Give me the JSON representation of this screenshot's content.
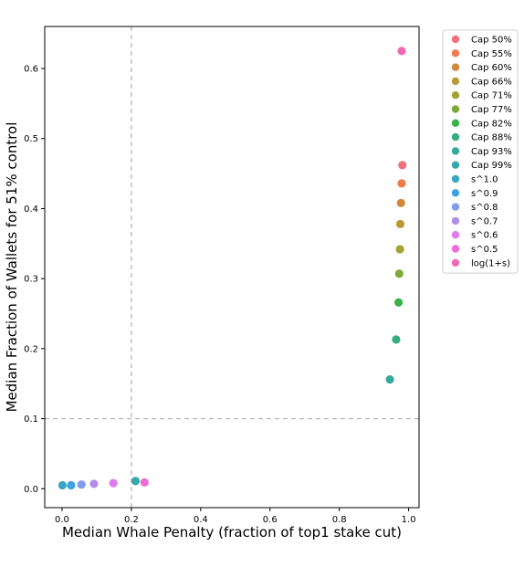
{
  "chart_data": {
    "type": "scatter",
    "title": "",
    "xlabel": "Median Whale Penalty (fraction of top1 stake cut)",
    "ylabel": "Median Fraction of Wallets for 51% control",
    "xlim": [
      -0.05,
      1.03
    ],
    "ylim": [
      -0.027,
      0.66
    ],
    "xticks": [
      0.0,
      0.2,
      0.4,
      0.6,
      0.8,
      1.0
    ],
    "xtick_labels": [
      "0.0",
      "0.2",
      "0.4",
      "0.6",
      "0.8",
      "1.0"
    ],
    "yticks": [
      0.0,
      0.1,
      0.2,
      0.3,
      0.4,
      0.5,
      0.6
    ],
    "ytick_labels": [
      "0.0",
      "0.1",
      "0.2",
      "0.3",
      "0.4",
      "0.5",
      "0.6"
    ],
    "grid": false,
    "reference_lines": [
      {
        "orientation": "vertical",
        "value": 0.2,
        "style": "dashed",
        "color": "#b0b0b0"
      },
      {
        "orientation": "horizontal",
        "value": 0.1,
        "style": "dashed",
        "color": "#b0b0b0"
      }
    ],
    "legend_position": "outside-top-right",
    "series": [
      {
        "name": "Cap 50%",
        "color": "#f0707e",
        "x": [
          0.982
        ],
        "y": [
          0.462
        ]
      },
      {
        "name": "Cap 55%",
        "color": "#f07a4c",
        "x": [
          0.98
        ],
        "y": [
          0.436
        ]
      },
      {
        "name": "Cap 60%",
        "color": "#d2883a",
        "x": [
          0.978
        ],
        "y": [
          0.408
        ]
      },
      {
        "name": "Cap 66%",
        "color": "#b99a35",
        "x": [
          0.976
        ],
        "y": [
          0.378
        ]
      },
      {
        "name": "Cap 71%",
        "color": "#a3a336",
        "x": [
          0.975
        ],
        "y": [
          0.342
        ]
      },
      {
        "name": "Cap 77%",
        "color": "#7daa37",
        "x": [
          0.973
        ],
        "y": [
          0.307
        ]
      },
      {
        "name": "Cap 82%",
        "color": "#3bb147",
        "x": [
          0.971
        ],
        "y": [
          0.266
        ]
      },
      {
        "name": "Cap 88%",
        "color": "#34ad7e",
        "x": [
          0.964
        ],
        "y": [
          0.213
        ]
      },
      {
        "name": "Cap 93%",
        "color": "#35aa9a",
        "x": [
          0.946
        ],
        "y": [
          0.156
        ]
      },
      {
        "name": "Cap 99%",
        "color": "#36a8a9",
        "x": [
          0.212
        ],
        "y": [
          0.011
        ]
      },
      {
        "name": "s^1.0",
        "color": "#38a6c2",
        "x": [
          0.001
        ],
        "y": [
          0.005
        ]
      },
      {
        "name": "s^0.9",
        "color": "#3ea1e0",
        "x": [
          0.026
        ],
        "y": [
          0.005
        ]
      },
      {
        "name": "s^0.8",
        "color": "#7f9ced",
        "x": [
          0.056
        ],
        "y": [
          0.006
        ]
      },
      {
        "name": "s^0.7",
        "color": "#b08ee8",
        "x": [
          0.092
        ],
        "y": [
          0.007
        ]
      },
      {
        "name": "s^0.6",
        "color": "#de7aec",
        "x": [
          0.148
        ],
        "y": [
          0.008
        ]
      },
      {
        "name": "s^0.5",
        "color": "#ee6ad6",
        "x": [
          0.238
        ],
        "y": [
          0.009
        ]
      },
      {
        "name": "log(1+s)",
        "color": "#f06bb5",
        "x": [
          0.98
        ],
        "y": [
          0.625
        ]
      }
    ]
  }
}
